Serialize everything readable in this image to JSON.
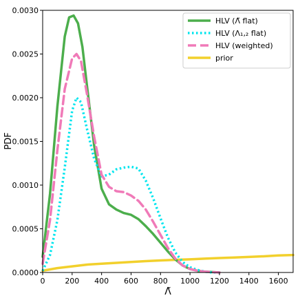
{
  "chart_data": {
    "type": "line",
    "xlabel": "Λ̃",
    "ylabel": "PDF",
    "xlim": [
      0,
      1700
    ],
    "ylim": [
      0,
      0.003
    ],
    "x_ticks": [
      0,
      200,
      400,
      600,
      800,
      1000,
      1200,
      1400,
      1600
    ],
    "y_ticks": [
      0.0,
      0.0005,
      0.001,
      0.0015,
      0.002,
      0.0025,
      0.003
    ],
    "x_tick_labels": [
      "0",
      "200",
      "400",
      "600",
      "800",
      "1000",
      "1200",
      "1400",
      "1600"
    ],
    "y_tick_labels": [
      "0.0000",
      "0.0005",
      "0.0010",
      "0.0015",
      "0.0020",
      "0.0025",
      "0.0030"
    ],
    "grid": false,
    "legend_position": "top-right",
    "series": [
      {
        "name": "HLV (Λ̃ flat)",
        "color": "#4cae4c",
        "style": "solid",
        "x": [
          0,
          50,
          100,
          150,
          180,
          210,
          240,
          270,
          300,
          350,
          400,
          450,
          500,
          550,
          600,
          650,
          700,
          750,
          800,
          850,
          900,
          950,
          1000,
          1050,
          1100,
          1200
        ],
        "y": [
          0.00018,
          0.0009,
          0.0019,
          0.0027,
          0.00292,
          0.00294,
          0.00285,
          0.00258,
          0.00215,
          0.00145,
          0.00096,
          0.00078,
          0.00072,
          0.00068,
          0.00066,
          0.00061,
          0.00053,
          0.00044,
          0.00034,
          0.00024,
          0.00015,
          8e-05,
          4e-05,
          2e-05,
          1e-05,
          0.0
        ]
      },
      {
        "name": "HLV (Λ₁,₂ flat)",
        "color": "#00e5ee",
        "style": "dotted",
        "x": [
          0,
          50,
          100,
          150,
          200,
          230,
          260,
          300,
          350,
          400,
          450,
          500,
          550,
          600,
          650,
          700,
          750,
          800,
          850,
          900,
          950,
          1000,
          1050,
          1100,
          1150,
          1200
        ],
        "y": [
          2e-05,
          0.0002,
          0.0006,
          0.0012,
          0.00185,
          0.002,
          0.00195,
          0.00165,
          0.0013,
          0.0011,
          0.00112,
          0.00118,
          0.0012,
          0.00121,
          0.00119,
          0.00105,
          0.00085,
          0.00062,
          0.0004,
          0.00023,
          0.00012,
          6e-05,
          3e-05,
          1e-05,
          0.0,
          0.0
        ]
      },
      {
        "name": "HLV (weighted)",
        "color": "#f07ab8",
        "style": "dashed",
        "x": [
          0,
          50,
          100,
          150,
          200,
          230,
          260,
          300,
          350,
          400,
          450,
          500,
          550,
          600,
          650,
          700,
          750,
          800,
          850,
          900,
          950,
          1000,
          1050,
          1100,
          1200
        ],
        "y": [
          0.0001,
          0.0006,
          0.0014,
          0.0021,
          0.00245,
          0.0025,
          0.00242,
          0.00205,
          0.00155,
          0.00112,
          0.00098,
          0.00093,
          0.00092,
          0.00088,
          0.00082,
          0.00072,
          0.00058,
          0.00043,
          0.00028,
          0.00016,
          8e-05,
          4e-05,
          2e-05,
          1e-05,
          0.0
        ]
      },
      {
        "name": "prior",
        "color": "#f2d02c",
        "style": "solid",
        "x": [
          0,
          100,
          200,
          300,
          400,
          500,
          600,
          700,
          800,
          900,
          1000,
          1100,
          1200,
          1300,
          1400,
          1500,
          1600,
          1700
        ],
        "y": [
          2e-05,
          5e-05,
          7e-05,
          9e-05,
          0.0001,
          0.00011,
          0.00012,
          0.00013,
          0.000138,
          0.000145,
          0.00015,
          0.000158,
          0.000165,
          0.000172,
          0.000178,
          0.000185,
          0.000195,
          0.0002
        ]
      }
    ]
  }
}
